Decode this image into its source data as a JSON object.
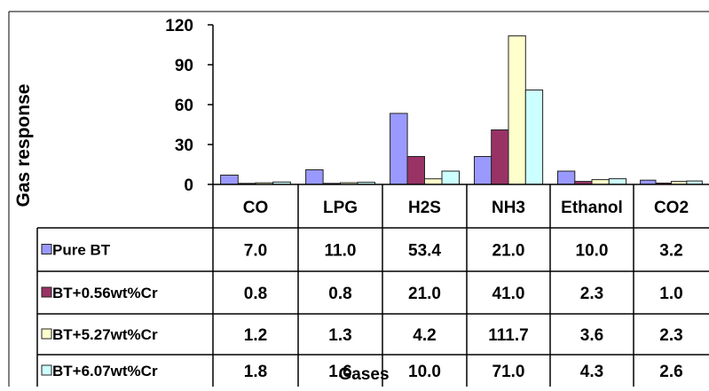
{
  "chart_data": {
    "type": "bar",
    "categories": [
      "CO",
      "LPG",
      "H2S",
      "NH3",
      "Ethanol",
      "CO2"
    ],
    "series": [
      {
        "name": "Pure BT",
        "color": "#9999ff",
        "values": [
          7.0,
          11.0,
          53.4,
          21.0,
          10.0,
          3.2
        ],
        "labels": [
          "7.0",
          "11.0",
          "53.4",
          "21.0",
          "10.0",
          "3.2"
        ]
      },
      {
        "name": "BT+0.56wt%Cr",
        "color": "#993366",
        "values": [
          0.8,
          0.8,
          21.0,
          41.0,
          2.3,
          1.0
        ],
        "labels": [
          "0.8",
          "0.8",
          "21.0",
          "41.0",
          "2.3",
          "1.0"
        ]
      },
      {
        "name": "BT+5.27wt%Cr",
        "color": "#ffffcc",
        "values": [
          1.2,
          1.3,
          4.2,
          111.7,
          3.6,
          2.3
        ],
        "labels": [
          "1.2",
          "1.3",
          "4.2",
          "111.7",
          "3.6",
          "2.3"
        ]
      },
      {
        "name": "BT+6.07wt%Cr",
        "color": "#ccffff",
        "values": [
          1.8,
          1.6,
          10.0,
          71.0,
          4.3,
          2.6
        ],
        "labels": [
          "1.8",
          "1.6",
          "10.0",
          "71.0",
          "4.3",
          "2.6"
        ]
      }
    ],
    "ylabel": "Gas response",
    "xlabel": "Gases",
    "ylim": [
      0,
      120
    ],
    "yticks": [
      "0",
      "30",
      "60",
      "90",
      "120"
    ],
    "grid": false,
    "legend": "data-table"
  }
}
